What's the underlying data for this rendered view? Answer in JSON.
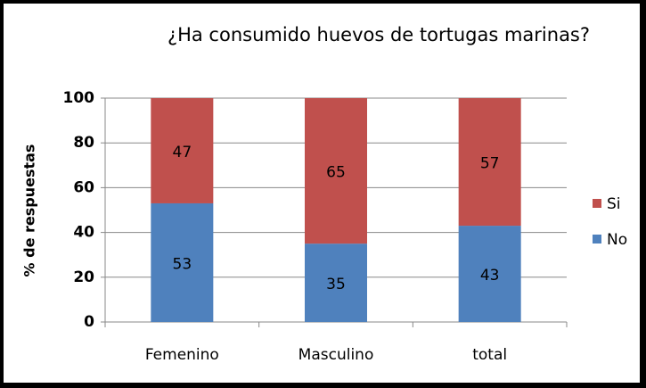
{
  "chart_data": {
    "type": "stacked_bar",
    "title": "¿Ha consumido huevos de tortugas marinas?",
    "ylabel": "% de respuestas",
    "categories": [
      "Femenino",
      "Masculino",
      "total"
    ],
    "series": [
      {
        "name": "No",
        "color": "#4f81bd",
        "values": [
          53,
          35,
          43
        ]
      },
      {
        "name": "Si",
        "color": "#c0504d",
        "values": [
          47,
          65,
          57
        ]
      }
    ],
    "ylim": [
      0,
      100
    ],
    "yticks": [
      0,
      20,
      40,
      60,
      80,
      100
    ],
    "grid": true,
    "legend": "right"
  }
}
